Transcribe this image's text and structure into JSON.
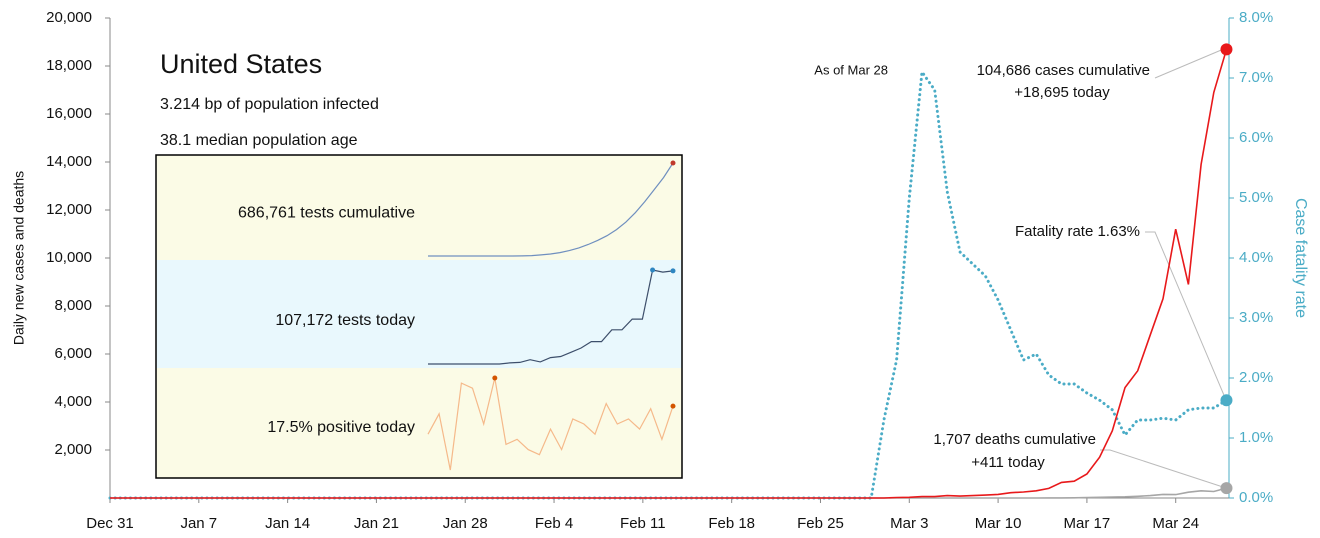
{
  "chart_data": {
    "type": "line",
    "title": "United States",
    "subtitle": [
      "3.214 bp of population infected",
      "38.1 median population age"
    ],
    "y_label": "Daily new cases and deaths",
    "y2_label": "Case fatality rate",
    "x": [
      0,
      1,
      2,
      3,
      4,
      5,
      6,
      7,
      8,
      9,
      10,
      11,
      12,
      13,
      14,
      15,
      16,
      17,
      18,
      19,
      20,
      21,
      22,
      23,
      24,
      25,
      26,
      27,
      28,
      29,
      30,
      31,
      32,
      33,
      34,
      35,
      36,
      37,
      38,
      39,
      40,
      41,
      42,
      43,
      44,
      45,
      46,
      47,
      48,
      49,
      50,
      51,
      52,
      53,
      54,
      55,
      56,
      57,
      58,
      59,
      60,
      61,
      62,
      63,
      64,
      65,
      66,
      67,
      68,
      69,
      70,
      71,
      72,
      73,
      74,
      75,
      76,
      77,
      78,
      79,
      80,
      81,
      82,
      83,
      84,
      85,
      86,
      87,
      88
    ],
    "xlim": [
      0,
      88.2
    ],
    "xticks": [
      {
        "value": 0,
        "label": "Dec 31"
      },
      {
        "value": 7,
        "label": "Jan 7"
      },
      {
        "value": 14,
        "label": "Jan 14"
      },
      {
        "value": 21,
        "label": "Jan 21"
      },
      {
        "value": 28,
        "label": "Jan 28"
      },
      {
        "value": 35,
        "label": "Feb 4"
      },
      {
        "value": 42,
        "label": "Feb 11"
      },
      {
        "value": 49,
        "label": "Feb 18"
      },
      {
        "value": 56,
        "label": "Feb 25"
      },
      {
        "value": 63,
        "label": "Mar 3"
      },
      {
        "value": 70,
        "label": "Mar 10"
      },
      {
        "value": 77,
        "label": "Mar 17"
      },
      {
        "value": 84,
        "label": "Mar 24"
      }
    ],
    "ylim": [
      0,
      20000
    ],
    "yticks": [
      {
        "value": 2000,
        "label": "2,000"
      },
      {
        "value": 4000,
        "label": "4,000"
      },
      {
        "value": 6000,
        "label": "6,000"
      },
      {
        "value": 8000,
        "label": "8,000"
      },
      {
        "value": 10000,
        "label": "10,000"
      },
      {
        "value": 12000,
        "label": "12,000"
      },
      {
        "value": 14000,
        "label": "14,000"
      },
      {
        "value": 16000,
        "label": "16,000"
      },
      {
        "value": 18000,
        "label": "18,000"
      },
      {
        "value": 20000,
        "label": "20,000"
      }
    ],
    "y2lim": [
      0,
      8
    ],
    "y2ticks": [
      {
        "value": 0,
        "label": "0.0%"
      },
      {
        "value": 1,
        "label": "1.0%"
      },
      {
        "value": 2,
        "label": "2.0%"
      },
      {
        "value": 3,
        "label": "3.0%"
      },
      {
        "value": 4,
        "label": "4.0%"
      },
      {
        "value": 5,
        "label": "5.0%"
      },
      {
        "value": 6,
        "label": "6.0%"
      },
      {
        "value": 7,
        "label": "7.0%"
      },
      {
        "value": 8,
        "label": "8.0%"
      }
    ],
    "y2_color": "#4bacc6",
    "series": [
      {
        "name": "Cases",
        "color": "#e8191b",
        "values": [
          0,
          0,
          0,
          0,
          0,
          0,
          0,
          0,
          0,
          0,
          0,
          0,
          0,
          0,
          0,
          0,
          0,
          0,
          0,
          0,
          0,
          0,
          0,
          0,
          0,
          0,
          0,
          0,
          0,
          0,
          0,
          0,
          0,
          0,
          0,
          0,
          0,
          0,
          0,
          0,
          0,
          0,
          0,
          0,
          0,
          0,
          0,
          0,
          0,
          0,
          0,
          0,
          0,
          0,
          0,
          0,
          0,
          0,
          0,
          0,
          0,
          0,
          20,
          30,
          60,
          60,
          100,
          80,
          100,
          120,
          150,
          220,
          250,
          300,
          400,
          650,
          700,
          1000,
          1700,
          2800,
          4600,
          5300,
          6800,
          8300,
          11200,
          8900,
          13900,
          16900,
          18695
        ]
      },
      {
        "name": "Deaths",
        "color": "#a6a6a6",
        "values": [
          0,
          0,
          0,
          0,
          0,
          0,
          0,
          0,
          0,
          0,
          0,
          0,
          0,
          0,
          0,
          0,
          0,
          0,
          0,
          0,
          0,
          0,
          0,
          0,
          0,
          0,
          0,
          0,
          0,
          0,
          0,
          0,
          0,
          0,
          0,
          0,
          0,
          0,
          0,
          0,
          0,
          0,
          0,
          0,
          0,
          0,
          0,
          0,
          0,
          0,
          0,
          0,
          0,
          0,
          0,
          0,
          0,
          0,
          0,
          0,
          0,
          0,
          0,
          0,
          0,
          0,
          0,
          0,
          0,
          0,
          0,
          0,
          0,
          2,
          3,
          5,
          10,
          20,
          30,
          40,
          50,
          70,
          100,
          150,
          140,
          240,
          300,
          270,
          411
        ]
      },
      {
        "name": "Case fatality rate",
        "color": "#4bacc6",
        "axis": "y2",
        "dashed": true,
        "values": [
          0,
          0,
          0,
          0,
          0,
          0,
          0,
          0,
          0,
          0,
          0,
          0,
          0,
          0,
          0,
          0,
          0,
          0,
          0,
          0,
          0,
          0,
          0,
          0,
          0,
          0,
          0,
          0,
          0,
          0,
          0,
          0,
          0,
          0,
          0,
          0,
          0,
          0,
          0,
          0,
          0,
          0,
          0,
          0,
          0,
          0,
          0,
          0,
          0,
          0,
          0,
          0,
          0,
          0,
          0,
          0,
          0,
          0,
          0,
          0,
          0,
          1.3,
          2.3,
          5.0,
          7.1,
          6.8,
          5.1,
          4.1,
          3.9,
          3.7,
          3.3,
          2.8,
          2.3,
          2.4,
          2.05,
          1.9,
          1.9,
          1.75,
          1.63,
          1.47,
          1.05,
          1.3,
          1.3,
          1.33,
          1.3,
          1.47,
          1.5,
          1.5,
          1.63
        ]
      }
    ],
    "annotations": {
      "as_of": "As of Mar 28",
      "cases": [
        "104,686 cases cumulative",
        "+18,695 today"
      ],
      "fatality": "Fatality rate 1.63%",
      "deaths": [
        "1,707 deaths cumulative",
        "+411 today"
      ]
    },
    "insets": [
      {
        "label": "686,761 tests cumulative",
        "color": "#6f8fbf",
        "dot_color": "#c0392b",
        "values": [
          0,
          0,
          0,
          0,
          0,
          0,
          0,
          0,
          0,
          0,
          1000,
          3000,
          8000,
          15000,
          25000,
          40000,
          60000,
          85000,
          115000,
          150000,
          195000,
          250000,
          320000,
          400000,
          490000,
          580000,
          686761
        ]
      },
      {
        "label": "107,172 tests today",
        "color": "#3d4f6b",
        "dot_color": "#2e86c1",
        "values": [
          20000,
          20000,
          20000,
          20000,
          20000,
          20000,
          20000,
          20000,
          21000,
          21500,
          24000,
          22000,
          26000,
          27000,
          31000,
          35000,
          41000,
          41000,
          52000,
          52000,
          62000,
          62000,
          108000,
          106000,
          107172
        ]
      },
      {
        "label": "17.5% positive today",
        "color": "#f5b98a",
        "dot_color": "#d35400",
        "values": [
          12,
          16,
          5,
          22,
          21,
          14,
          23,
          10,
          11,
          9,
          8,
          13,
          9,
          15,
          14,
          12,
          18,
          14,
          15,
          13,
          17,
          11,
          17.5
        ]
      }
    ]
  }
}
